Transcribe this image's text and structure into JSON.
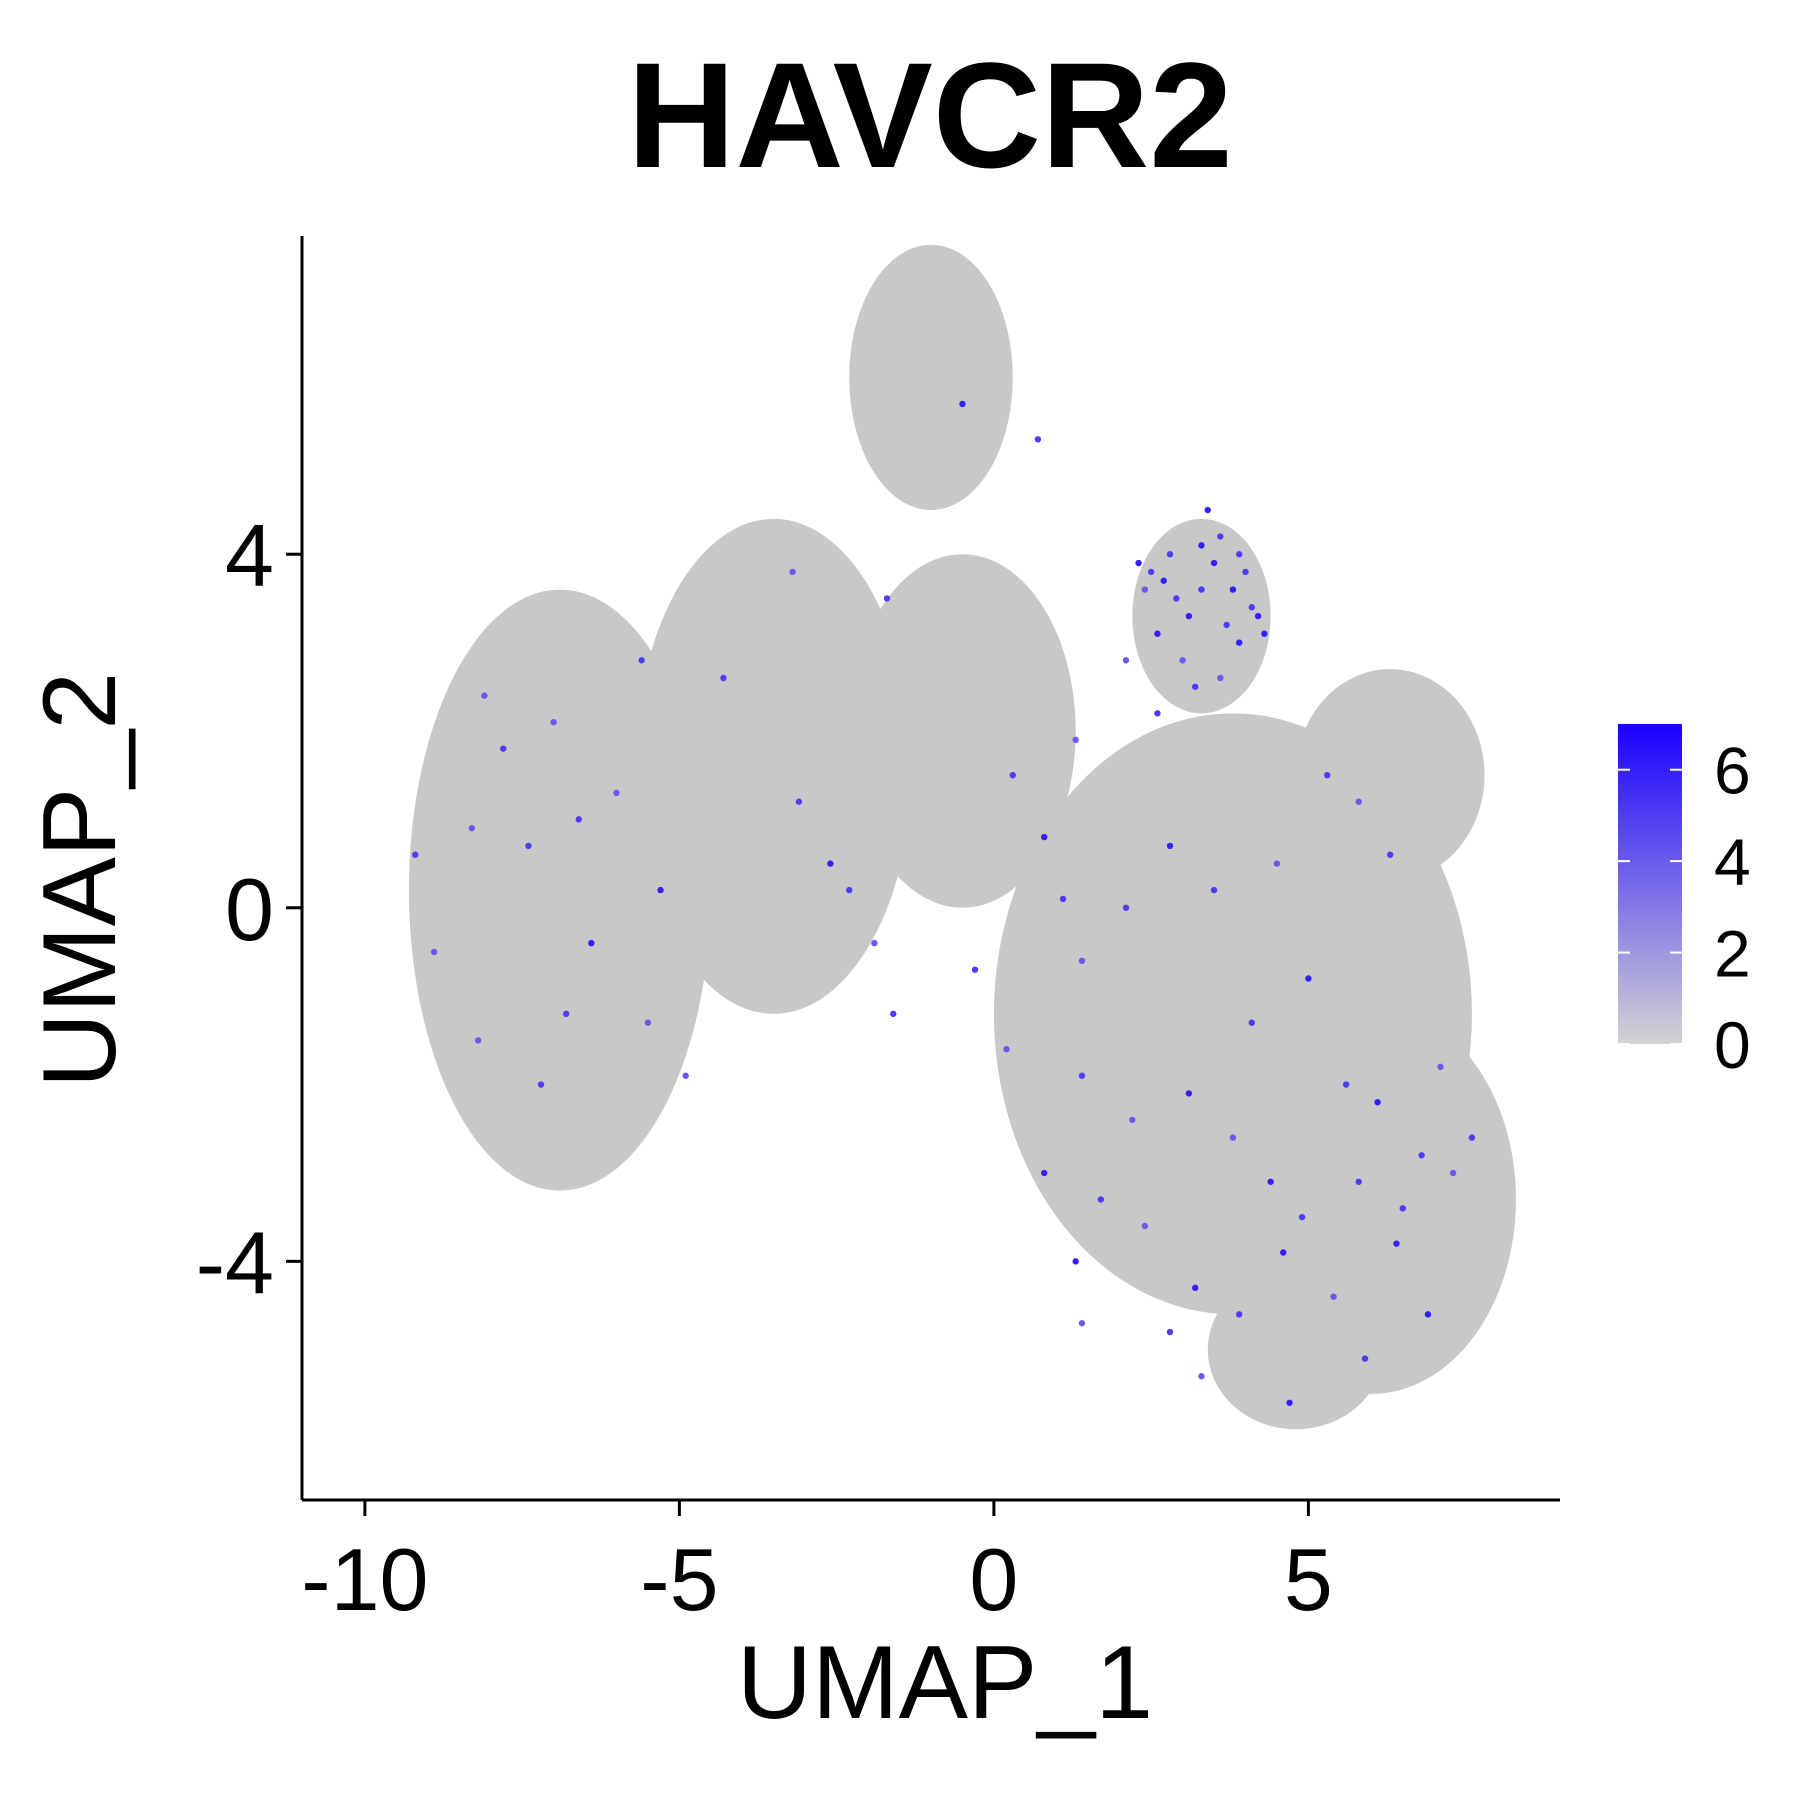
{
  "chart_data": {
    "type": "scatter",
    "title": "HAVCR2",
    "xlabel": "UMAP_1",
    "ylabel": "UMAP_2",
    "xlim": [
      -11,
      9
    ],
    "ylim": [
      -6.7,
      7.6
    ],
    "x_ticks": [
      "-10",
      "-5",
      "0",
      "5"
    ],
    "x_tick_values": [
      -10,
      -5,
      0,
      5
    ],
    "y_ticks": [
      "4",
      "0",
      "-4"
    ],
    "y_tick_values": [
      4,
      0,
      -4
    ],
    "grid": false,
    "legend": {
      "type": "colorbar",
      "position": "right",
      "ticks": [
        "0",
        "2",
        "4",
        "6"
      ],
      "tick_values": [
        0,
        2,
        4,
        6
      ],
      "range": [
        0,
        7
      ],
      "low_color": "#d3d3d3",
      "high_color": "#1a00ff"
    },
    "background_color": "#c8c8c8",
    "regions": [
      {
        "shape": "ellipse",
        "cx": -6.9,
        "cy": 0.2,
        "rx": 2.4,
        "ry": 3.4
      },
      {
        "shape": "ellipse",
        "cx": -3.5,
        "cy": 1.6,
        "rx": 2.2,
        "ry": 2.8
      },
      {
        "shape": "ellipse",
        "cx": -1.0,
        "cy": 6.0,
        "rx": 1.3,
        "ry": 1.5
      },
      {
        "shape": "ellipse",
        "cx": -0.5,
        "cy": 2.0,
        "rx": 1.8,
        "ry": 2.0
      },
      {
        "shape": "ellipse",
        "cx": 3.8,
        "cy": -1.2,
        "rx": 3.8,
        "ry": 3.4
      },
      {
        "shape": "ellipse",
        "cx": 6.3,
        "cy": 1.5,
        "rx": 1.5,
        "ry": 1.2
      },
      {
        "shape": "ellipse",
        "cx": 6.0,
        "cy": -3.3,
        "rx": 2.3,
        "ry": 2.2
      },
      {
        "shape": "ellipse",
        "cx": 3.3,
        "cy": 3.3,
        "rx": 1.1,
        "ry": 1.1
      },
      {
        "shape": "ellipse",
        "cx": 4.8,
        "cy": -5.0,
        "rx": 1.4,
        "ry": 0.9
      }
    ],
    "expressing_cells": [
      [
        3.4,
        4.5,
        6
      ],
      [
        3.6,
        4.2,
        5
      ],
      [
        2.3,
        3.9,
        6
      ],
      [
        2.5,
        3.8,
        5
      ],
      [
        2.7,
        3.7,
        6
      ],
      [
        2.9,
        3.5,
        5
      ],
      [
        3.1,
        3.3,
        6
      ],
      [
        3.3,
        3.6,
        5
      ],
      [
        3.5,
        3.9,
        6
      ],
      [
        3.7,
        3.2,
        5
      ],
      [
        3.9,
        3.0,
        6
      ],
      [
        4.1,
        3.4,
        5
      ],
      [
        4.3,
        3.1,
        6
      ],
      [
        3.0,
        2.8,
        4
      ],
      [
        3.2,
        2.5,
        5
      ],
      [
        3.6,
        2.6,
        4
      ],
      [
        2.6,
        3.1,
        6
      ],
      [
        2.8,
        4.0,
        5
      ],
      [
        3.8,
        3.6,
        6
      ],
      [
        4.0,
        3.8,
        5
      ],
      [
        2.4,
        3.6,
        4
      ],
      [
        3.3,
        4.1,
        6
      ],
      [
        3.9,
        4.0,
        5
      ],
      [
        4.2,
        3.3,
        6
      ],
      [
        2.1,
        2.8,
        4
      ],
      [
        -0.5,
        5.7,
        6
      ],
      [
        0.7,
        5.3,
        5
      ],
      [
        -4.3,
        2.6,
        5
      ],
      [
        -8.1,
        2.4,
        4
      ],
      [
        -7.8,
        1.8,
        5
      ],
      [
        -7.0,
        2.1,
        4
      ],
      [
        -6.6,
        1.0,
        5
      ],
      [
        -8.3,
        0.9,
        4
      ],
      [
        -7.4,
        0.7,
        5
      ],
      [
        -5.3,
        0.2,
        6
      ],
      [
        -6.0,
        1.3,
        4
      ],
      [
        -6.8,
        -1.2,
        5
      ],
      [
        -6.4,
        -0.4,
        6
      ],
      [
        -8.2,
        -1.5,
        4
      ],
      [
        -7.2,
        -2.0,
        5
      ],
      [
        -5.5,
        -1.3,
        4
      ],
      [
        -3.1,
        1.2,
        5
      ],
      [
        -2.6,
        0.5,
        6
      ],
      [
        -1.9,
        -0.4,
        4
      ],
      [
        -2.3,
        0.2,
        5
      ],
      [
        0.3,
        1.5,
        5
      ],
      [
        0.8,
        0.8,
        6
      ],
      [
        1.1,
        0.1,
        5
      ],
      [
        1.4,
        -0.6,
        4
      ],
      [
        2.1,
        0.0,
        5
      ],
      [
        2.8,
        0.7,
        6
      ],
      [
        3.5,
        0.2,
        5
      ],
      [
        4.5,
        0.5,
        4
      ],
      [
        5.3,
        1.5,
        5
      ],
      [
        5.8,
        1.2,
        4
      ],
      [
        6.3,
        0.6,
        5
      ],
      [
        5.0,
        -0.8,
        6
      ],
      [
        4.1,
        -1.3,
        5
      ],
      [
        3.1,
        -2.1,
        6
      ],
      [
        2.2,
        -2.4,
        4
      ],
      [
        1.4,
        -1.9,
        5
      ],
      [
        0.8,
        -3.0,
        6
      ],
      [
        1.7,
        -3.3,
        5
      ],
      [
        1.3,
        -4.0,
        6
      ],
      [
        2.4,
        -3.6,
        4
      ],
      [
        3.2,
        -4.3,
        6
      ],
      [
        3.9,
        -4.6,
        5
      ],
      [
        4.6,
        -3.9,
        6
      ],
      [
        4.9,
        -3.5,
        5
      ],
      [
        5.4,
        -4.4,
        4
      ],
      [
        5.8,
        -3.1,
        5
      ],
      [
        6.4,
        -3.8,
        6
      ],
      [
        6.8,
        -2.8,
        5
      ],
      [
        7.3,
        -3.0,
        4
      ],
      [
        7.6,
        -2.6,
        5
      ],
      [
        6.9,
        -4.6,
        6
      ],
      [
        5.9,
        -5.1,
        5
      ],
      [
        4.7,
        -5.6,
        6
      ],
      [
        3.3,
        -5.3,
        4
      ],
      [
        2.8,
        -4.8,
        5
      ],
      [
        1.4,
        -4.7,
        4
      ],
      [
        6.1,
        -2.2,
        6
      ],
      [
        5.6,
        -2.0,
        5
      ],
      [
        7.1,
        -1.8,
        4
      ],
      [
        6.5,
        -3.4,
        5
      ],
      [
        3.8,
        -2.6,
        4
      ],
      [
        4.4,
        -3.1,
        6
      ],
      [
        -0.3,
        -0.7,
        5
      ],
      [
        0.2,
        -1.6,
        4
      ],
      [
        -1.7,
        3.5,
        5
      ],
      [
        1.3,
        1.9,
        4
      ],
      [
        2.6,
        2.2,
        5
      ],
      [
        -3.2,
        3.8,
        4
      ],
      [
        -5.6,
        2.8,
        5
      ],
      [
        -8.9,
        -0.5,
        4
      ],
      [
        -9.2,
        0.6,
        5
      ],
      [
        -4.9,
        -1.9,
        4
      ],
      [
        -1.6,
        -1.2,
        5
      ]
    ]
  }
}
